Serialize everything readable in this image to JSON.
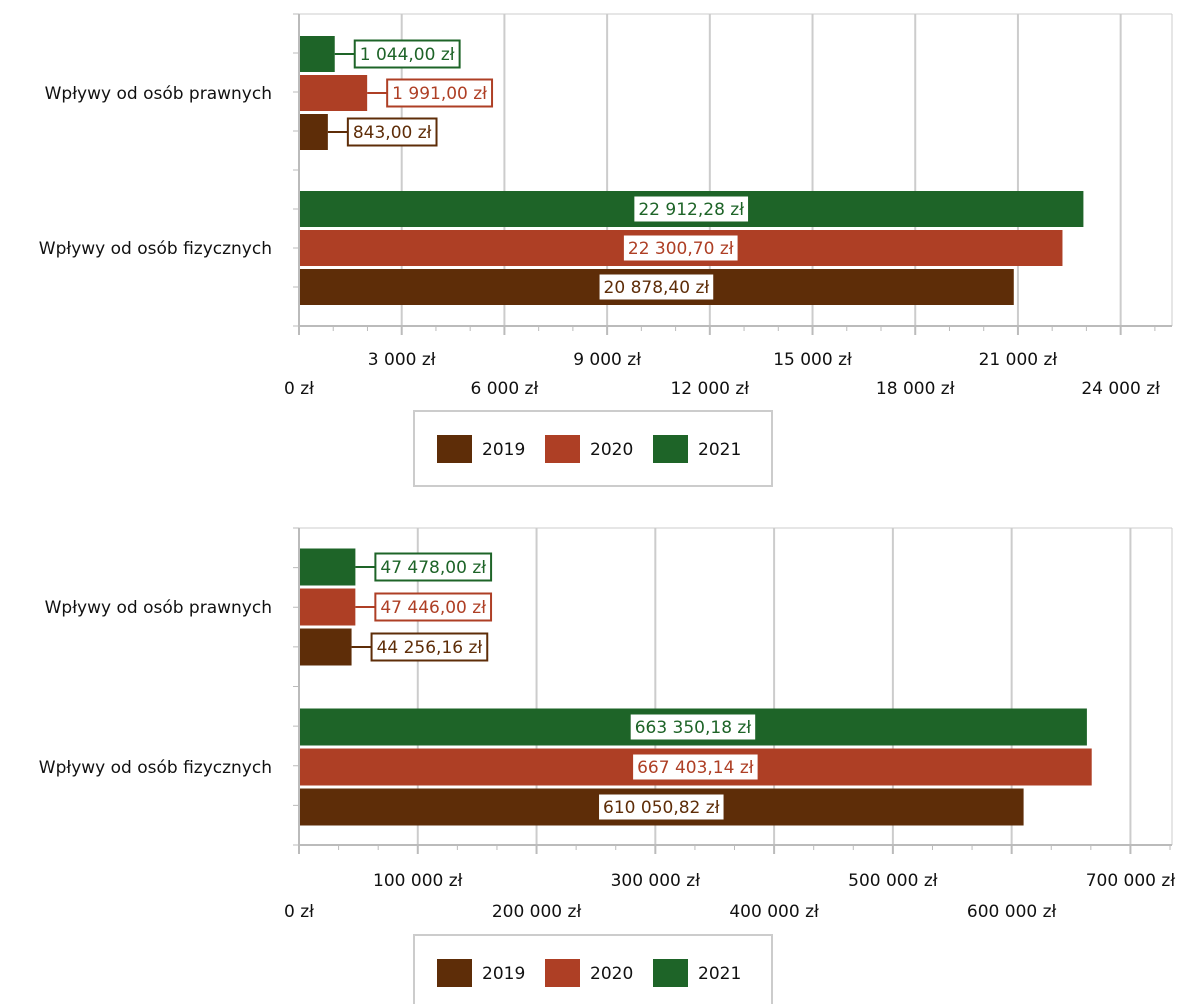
{
  "colors": {
    "2019": "#5e2d08",
    "2020": "#ae3f25",
    "2021": "#1e6428",
    "grid": "#cccccc",
    "axis": "#bbbbbb"
  },
  "chart_data": [
    {
      "type": "bar",
      "orientation": "horizontal",
      "categories": [
        "Wpływy od osób prawnych",
        "Wpływy od osób fizycznych"
      ],
      "series": [
        {
          "name": "2019",
          "values": [
            843.0,
            20878.4
          ],
          "labels": [
            "843,00 zł",
            "20 878,40 zł"
          ]
        },
        {
          "name": "2020",
          "values": [
            1991.0,
            22300.7
          ],
          "labels": [
            "1 991,00 zł",
            "22 300,70 zł"
          ]
        },
        {
          "name": "2021",
          "values": [
            1044.0,
            22912.28
          ],
          "labels": [
            "1 044,00 zł",
            "22 912,28 zł"
          ]
        }
      ],
      "xlim": [
        0,
        25500
      ],
      "ticks": [
        {
          "value": 0,
          "label": "0 zł"
        },
        {
          "value": 3000,
          "label": "3 000 zł"
        },
        {
          "value": 6000,
          "label": "6 000 zł"
        },
        {
          "value": 9000,
          "label": "9 000 zł"
        },
        {
          "value": 12000,
          "label": "12 000 zł"
        },
        {
          "value": 15000,
          "label": "15 000 zł"
        },
        {
          "value": 18000,
          "label": "18 000 zł"
        },
        {
          "value": 21000,
          "label": "21 000 zł"
        },
        {
          "value": 24000,
          "label": "24 000 zł"
        }
      ],
      "grid": true,
      "legend": "bottom"
    },
    {
      "type": "bar",
      "orientation": "horizontal",
      "categories": [
        "Wpływy od osób prawnych",
        "Wpływy od osób fizycznych"
      ],
      "series": [
        {
          "name": "2019",
          "values": [
            44256.16,
            610050.82
          ],
          "labels": [
            "44 256,16 zł",
            "610 050,82 zł"
          ]
        },
        {
          "name": "2020",
          "values": [
            47446.0,
            667403.14
          ],
          "labels": [
            "47 446,00 zł",
            "667 403,14 zł"
          ]
        },
        {
          "name": "2021",
          "values": [
            47478.0,
            663350.18
          ],
          "labels": [
            "47 478,00 zł",
            "663 350,18 zł"
          ]
        }
      ],
      "xlim": [
        0,
        735000
      ],
      "ticks": [
        {
          "value": 0,
          "label": "0 zł"
        },
        {
          "value": 100000,
          "label": "100 000 zł"
        },
        {
          "value": 200000,
          "label": "200 000 zł"
        },
        {
          "value": 300000,
          "label": "300 000 zł"
        },
        {
          "value": 400000,
          "label": "400 000 zł"
        },
        {
          "value": 500000,
          "label": "500 000 zł"
        },
        {
          "value": 600000,
          "label": "600 000 zł"
        },
        {
          "value": 700000,
          "label": "700 000 zł"
        }
      ],
      "grid": true,
      "legend": "bottom"
    }
  ]
}
